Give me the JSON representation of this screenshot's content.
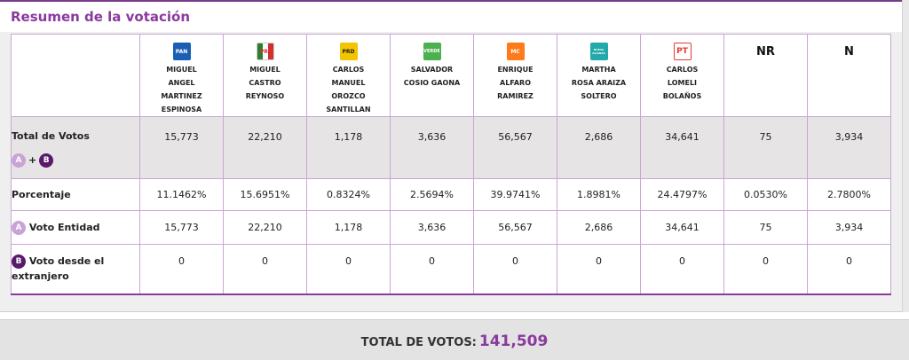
{
  "title": "Resumen de la votación",
  "candidates": [
    {
      "party": "PAN",
      "color": "#1a5fb4",
      "name_lines": [
        "MIGUEL",
        "ANGEL",
        "MARTINEZ",
        "ESPINOSA"
      ]
    },
    {
      "party": "PRI",
      "color": "#ffffff",
      "name_lines": [
        "MIGUEL",
        "CASTRO",
        "REYNOSO"
      ]
    },
    {
      "party": "PRD",
      "color": "#f2c500",
      "name_lines": [
        "CARLOS",
        "MANUEL",
        "OROZCO",
        "SANTILLAN"
      ]
    },
    {
      "party": "VERDE",
      "color": "#4caf50",
      "name_lines": [
        "SALVADOR",
        "COSIO GAONA"
      ]
    },
    {
      "party": "MC",
      "color": "#ff7a1a",
      "name_lines": [
        "ENRIQUE",
        "ALFARO",
        "RAMIREZ"
      ]
    },
    {
      "party": "NUEVA ALIANZA",
      "color": "#23a9a9",
      "name_lines": [
        "MARTHA",
        "ROSA ARAIZA",
        "SOLTERO"
      ]
    },
    {
      "party": "PT",
      "color": "#e53935",
      "name_lines": [
        "CARLOS",
        "LOMELI",
        "BOLAÑOS"
      ]
    }
  ],
  "extra_columns": [
    "NR",
    "N"
  ],
  "rows": {
    "total": {
      "label": "Total de Votos",
      "badge_a": "A",
      "plus": "+",
      "badge_b": "B",
      "values": [
        "15,773",
        "22,210",
        "1,178",
        "3,636",
        "56,567",
        "2,686",
        "34,641",
        "75",
        "3,934"
      ]
    },
    "percent": {
      "label": "Porcentaje",
      "values": [
        "11.1462%",
        "15.6951%",
        "0.8324%",
        "2.5694%",
        "39.9741%",
        "1.8981%",
        "24.4797%",
        "0.0530%",
        "2.7800%"
      ]
    },
    "entidad": {
      "badge": "A",
      "label": "Voto Entidad",
      "values": [
        "15,773",
        "22,210",
        "1,178",
        "3,636",
        "56,567",
        "2,686",
        "34,641",
        "75",
        "3,934"
      ]
    },
    "extranjero": {
      "badge": "B",
      "label_line1": "Voto desde el",
      "label_line2": "extranjero",
      "values": [
        "0",
        "0",
        "0",
        "0",
        "0",
        "0",
        "0",
        "0",
        "0"
      ]
    }
  },
  "footer": {
    "label": "TOTAL DE VOTOS:",
    "value": "141,509"
  }
}
